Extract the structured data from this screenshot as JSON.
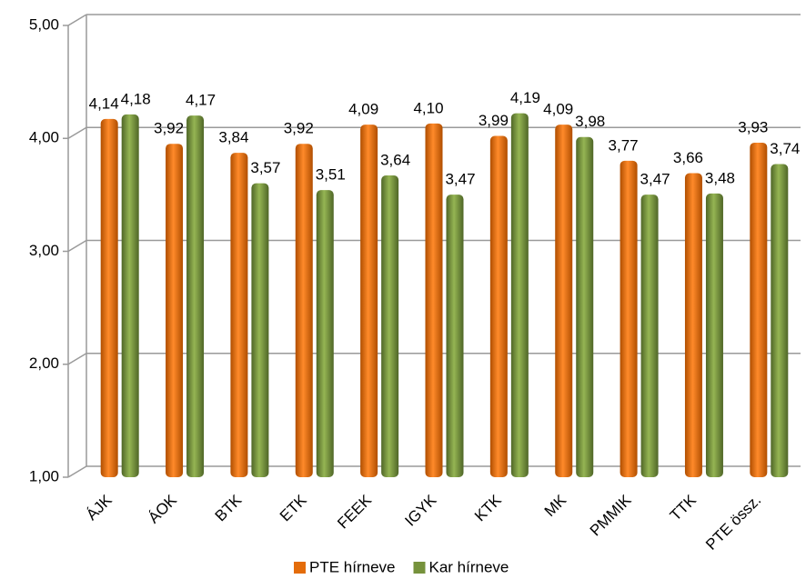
{
  "chart_data": {
    "type": "bar",
    "categories": [
      "ÁJK",
      "ÁOK",
      "BTK",
      "ETK",
      "FEEK",
      "IGYK",
      "KTK",
      "MK",
      "PMMIK",
      "TTK",
      "PTE össz."
    ],
    "series": [
      {
        "name": "PTE hírneve",
        "color": "#e46c0a",
        "values": [
          4.14,
          3.92,
          3.84,
          3.92,
          4.09,
          4.1,
          3.99,
          4.09,
          3.77,
          3.66,
          3.93
        ],
        "value_labels": [
          "4,14",
          "3,92",
          "3,84",
          "3,92",
          "4,09",
          "4,10",
          "3,99",
          "4,09",
          "3,77",
          "3,66",
          "3,93"
        ]
      },
      {
        "name": "Kar hírneve",
        "color": "#76923c",
        "values": [
          4.18,
          4.17,
          3.57,
          3.51,
          3.64,
          3.47,
          4.19,
          3.98,
          3.47,
          3.48,
          3.74
        ],
        "value_labels": [
          "4,18",
          "4,17",
          "3,57",
          "3,51",
          "3,64",
          "3,47",
          "4,19",
          "3,98",
          "3,47",
          "3,48",
          "3,74"
        ]
      }
    ],
    "ylim": [
      1,
      5
    ],
    "yticks": [
      {
        "value": 1,
        "label": "1,00"
      },
      {
        "value": 2,
        "label": "2,00"
      },
      {
        "value": 3,
        "label": "3,00"
      },
      {
        "value": 4,
        "label": "4,00"
      },
      {
        "value": 5,
        "label": "5,00"
      }
    ],
    "grid": true,
    "legend": "bottom"
  }
}
